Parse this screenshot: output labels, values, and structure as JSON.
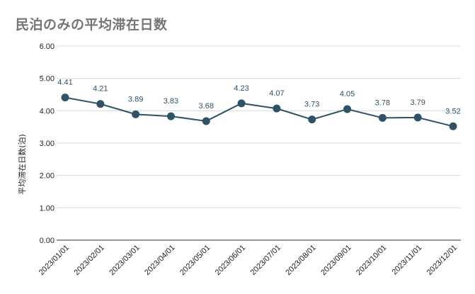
{
  "chart_data": {
    "type": "line",
    "title": "民泊のみの平均滞在日数",
    "xlabel": "",
    "ylabel": "平均滞在日数(泊)",
    "ylim": [
      0,
      6
    ],
    "yticks": [
      "0.00",
      "1.00",
      "2.00",
      "3.00",
      "4.00",
      "5.00",
      "6.00"
    ],
    "categories": [
      "2023/01/01",
      "2023/02/01",
      "2023/03/01",
      "2023/04/01",
      "2023/05/01",
      "2023/06/01",
      "2023/07/01",
      "2023/08/01",
      "2023/09/01",
      "2023/10/01",
      "2023/11/01",
      "2023/12/01"
    ],
    "series": [
      {
        "values": [
          4.41,
          4.21,
          3.89,
          3.83,
          3.68,
          4.23,
          4.07,
          3.73,
          4.05,
          3.78,
          3.79,
          3.52
        ],
        "labels": [
          "4.41",
          "4.21",
          "3.89",
          "3.83",
          "3.68",
          "4.23",
          "4.07",
          "3.73",
          "4.05",
          "3.78",
          "3.79",
          "3.52"
        ],
        "color": "#2e5266"
      }
    ],
    "grid": true,
    "gridColor": "#d9d9d9",
    "legend": "none"
  }
}
